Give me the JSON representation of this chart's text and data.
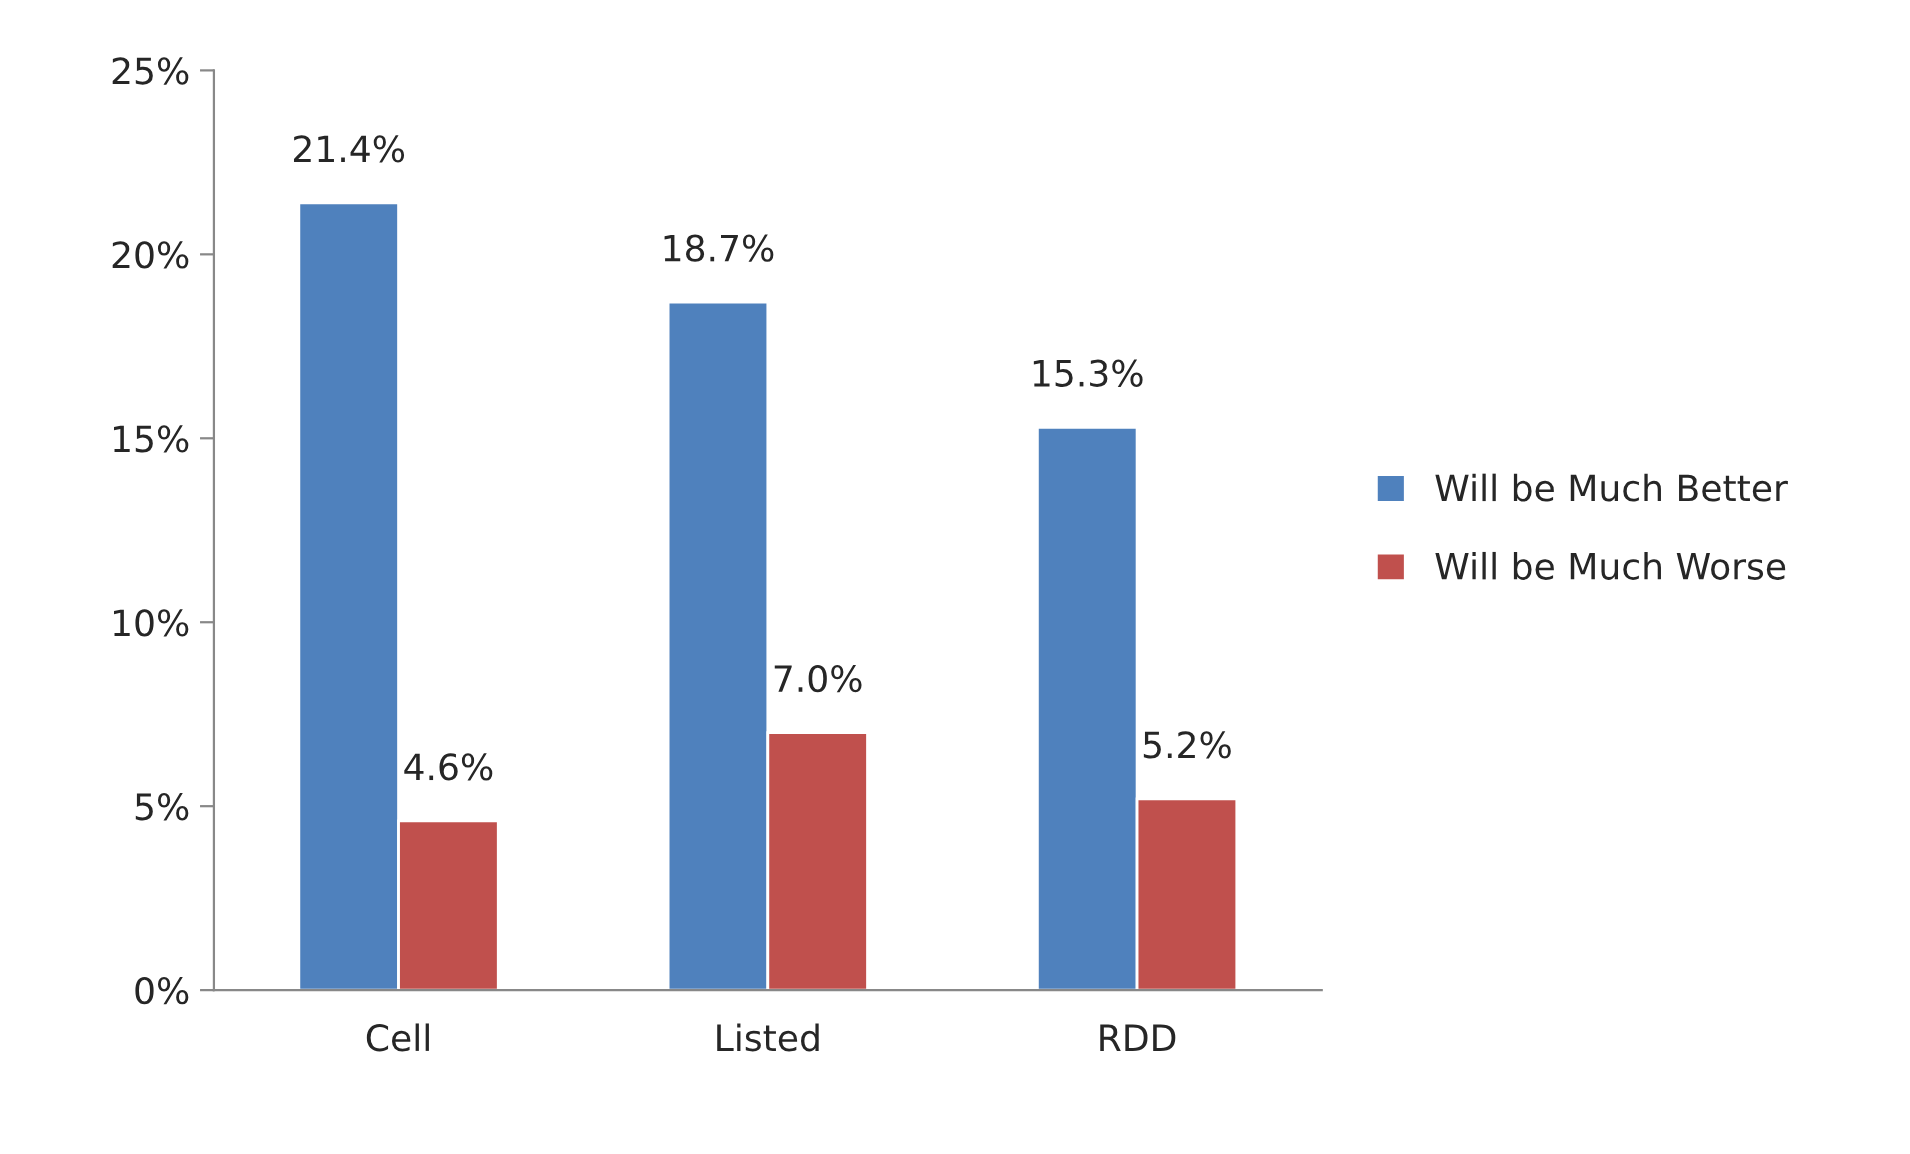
{
  "chart_data": {
    "type": "bar",
    "categories": [
      "Cell",
      "Listed",
      "RDD"
    ],
    "series": [
      {
        "name": "Will be Much Better",
        "color": "#4f81bd",
        "values": [
          21.4,
          18.7,
          15.3
        ],
        "value_labels": [
          "21.4%",
          "18.7%",
          "15.3%"
        ]
      },
      {
        "name": "Will be Much Worse",
        "color": "#c0504d",
        "values": [
          4.6,
          7.0,
          5.2
        ],
        "value_labels": [
          "4.6%",
          "7.0%",
          "5.2%"
        ]
      }
    ],
    "ylim": [
      0,
      25
    ],
    "yticks": [
      {
        "value": 0,
        "label": "0%"
      },
      {
        "value": 5,
        "label": "5%"
      },
      {
        "value": 10,
        "label": "10%"
      },
      {
        "value": 15,
        "label": "15%"
      },
      {
        "value": 20,
        "label": "20%"
      },
      {
        "value": 25,
        "label": "25%"
      }
    ],
    "grid": false,
    "legend": "right"
  }
}
